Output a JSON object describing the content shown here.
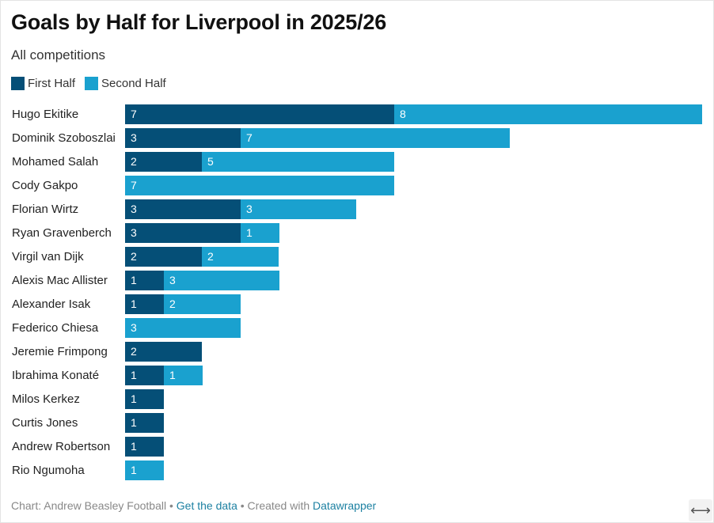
{
  "title": "Goals by Half for Liverpool in 2025/26",
  "subtitle": "All competitions",
  "colors": {
    "first_half": "#054f77",
    "second_half": "#1aa1cf"
  },
  "chart_data": {
    "type": "bar",
    "orientation": "horizontal",
    "stacked": true,
    "categories": [
      "Hugo Ekitike",
      "Dominik Szoboszlai",
      "Mohamed Salah",
      "Cody Gakpo",
      "Florian Wirtz",
      "Ryan Gravenberch",
      "Virgil van Dijk",
      "Alexis Mac Allister",
      "Alexander Isak",
      "Federico Chiesa",
      "Jeremie Frimpong",
      "Ibrahima Konaté",
      "Milos Kerkez",
      "Curtis Jones",
      "Andrew Robertson",
      "Rio Ngumoha"
    ],
    "series": [
      {
        "name": "First Half",
        "values": [
          7,
          3,
          2,
          0,
          3,
          3,
          2,
          1,
          1,
          0,
          2,
          1,
          1,
          1,
          1,
          0
        ]
      },
      {
        "name": "Second Half",
        "values": [
          8,
          7,
          5,
          7,
          3,
          1,
          2,
          3,
          2,
          3,
          0,
          1,
          0,
          0,
          0,
          1
        ]
      }
    ],
    "xlim": [
      0,
      15
    ],
    "legend": "top-left",
    "grid": false
  },
  "footer": {
    "prefix": "Chart: Andrew Beasley Football",
    "sep1": " • ",
    "get_data": "Get the data",
    "sep2": " • Created with ",
    "datawrapper": "Datawrapper"
  },
  "resize_icon": "⟷"
}
